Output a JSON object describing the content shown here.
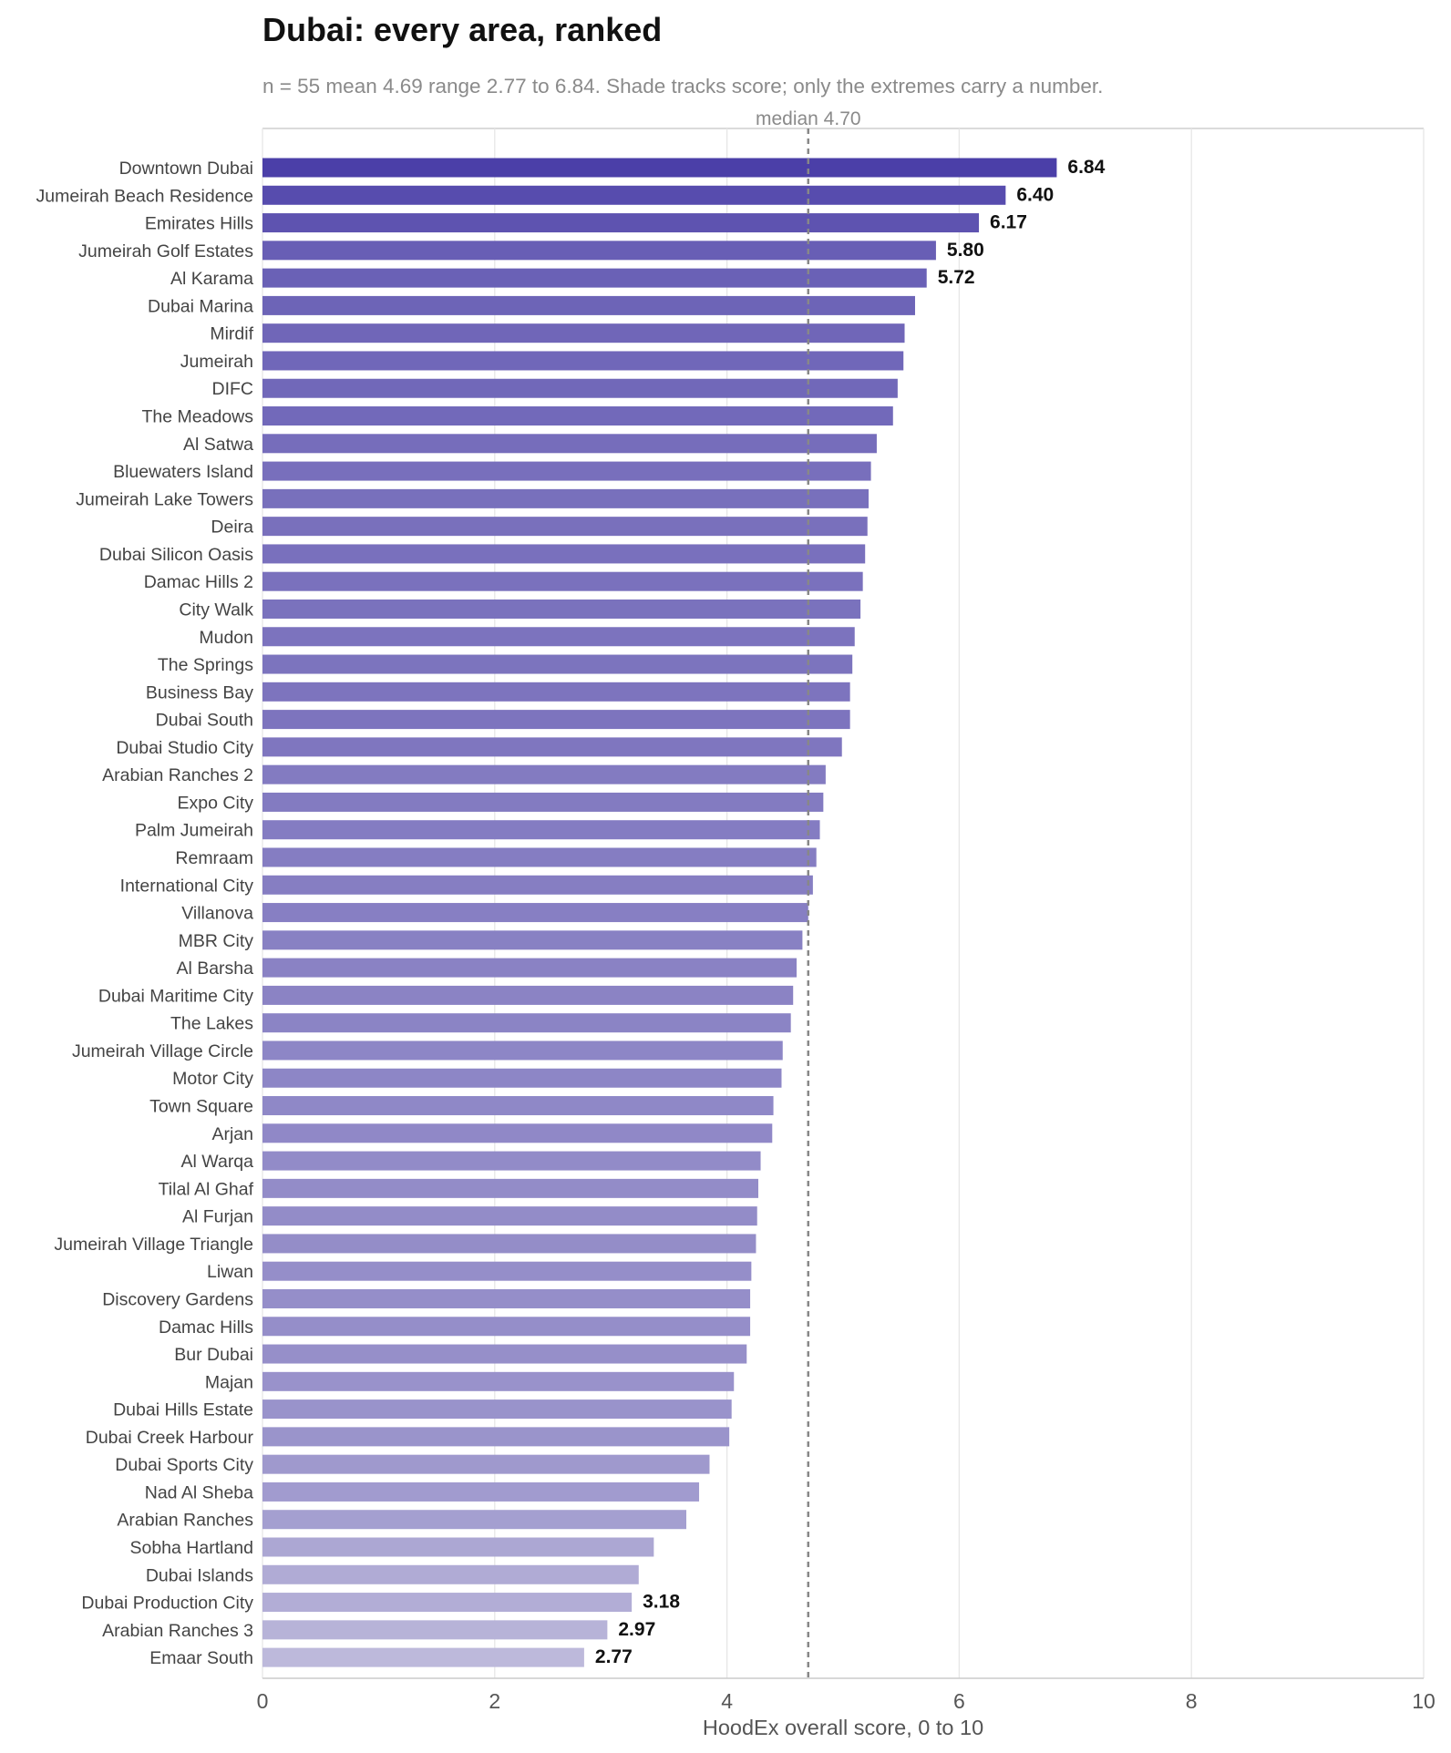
{
  "chart_data": {
    "type": "bar",
    "orientation": "horizontal",
    "title": "Dubai: every area, ranked",
    "subtitle": "n = 55   mean 4.69   range 2.77 to 6.84. Shade tracks score; only the extremes carry a number.",
    "xlabel": "HoodEx overall score, 0 to 10",
    "ylabel": "",
    "xlim": [
      0,
      10
    ],
    "xticks": [
      "0",
      "2",
      "4",
      "6",
      "8",
      "10"
    ],
    "grid": true,
    "median": {
      "value": 4.7,
      "label": "median 4.70"
    },
    "colors": {
      "high": "#4b3fa8",
      "low": "#bdb9db"
    },
    "labeled_values": [
      6.84,
      6.4,
      6.17,
      5.8,
      5.72,
      3.18,
      2.97,
      2.77
    ],
    "categories": [
      "Downtown Dubai",
      "Jumeirah Beach Residence",
      "Emirates Hills",
      "Jumeirah Golf Estates",
      "Al Karama",
      "Dubai Marina",
      "Mirdif",
      "Jumeirah",
      "DIFC",
      "The Meadows",
      "Al Satwa",
      "Bluewaters Island",
      "Jumeirah Lake Towers",
      "Deira",
      "Dubai Silicon Oasis",
      "Damac Hills 2",
      "City Walk",
      "Mudon",
      "The Springs",
      "Business Bay",
      "Dubai South",
      "Dubai Studio City",
      "Arabian Ranches 2",
      "Expo City",
      "Palm Jumeirah",
      "Remraam",
      "International City",
      "Villanova",
      "MBR City",
      "Al Barsha",
      "Dubai Maritime City",
      "The Lakes",
      "Jumeirah Village Circle",
      "Motor City",
      "Town Square",
      "Arjan",
      "Al Warqa",
      "Tilal Al Ghaf",
      "Al Furjan",
      "Jumeirah Village Triangle",
      "Liwan",
      "Discovery Gardens",
      "Damac Hills",
      "Bur Dubai",
      "Majan",
      "Dubai Hills Estate",
      "Dubai Creek Harbour",
      "Dubai Sports City",
      "Nad Al Sheba",
      "Arabian Ranches",
      "Sobha Hartland",
      "Dubai Islands",
      "Dubai Production City",
      "Arabian Ranches 3",
      "Emaar South"
    ],
    "values": [
      6.84,
      6.4,
      6.17,
      5.8,
      5.72,
      5.62,
      5.53,
      5.52,
      5.47,
      5.43,
      5.29,
      5.24,
      5.22,
      5.21,
      5.19,
      5.17,
      5.15,
      5.1,
      5.08,
      5.06,
      5.06,
      4.99,
      4.85,
      4.83,
      4.8,
      4.77,
      4.74,
      4.7,
      4.65,
      4.6,
      4.57,
      4.55,
      4.48,
      4.47,
      4.4,
      4.39,
      4.29,
      4.27,
      4.26,
      4.25,
      4.21,
      4.2,
      4.2,
      4.17,
      4.06,
      4.04,
      4.02,
      3.85,
      3.76,
      3.65,
      3.37,
      3.24,
      3.18,
      2.97,
      2.77
    ]
  }
}
